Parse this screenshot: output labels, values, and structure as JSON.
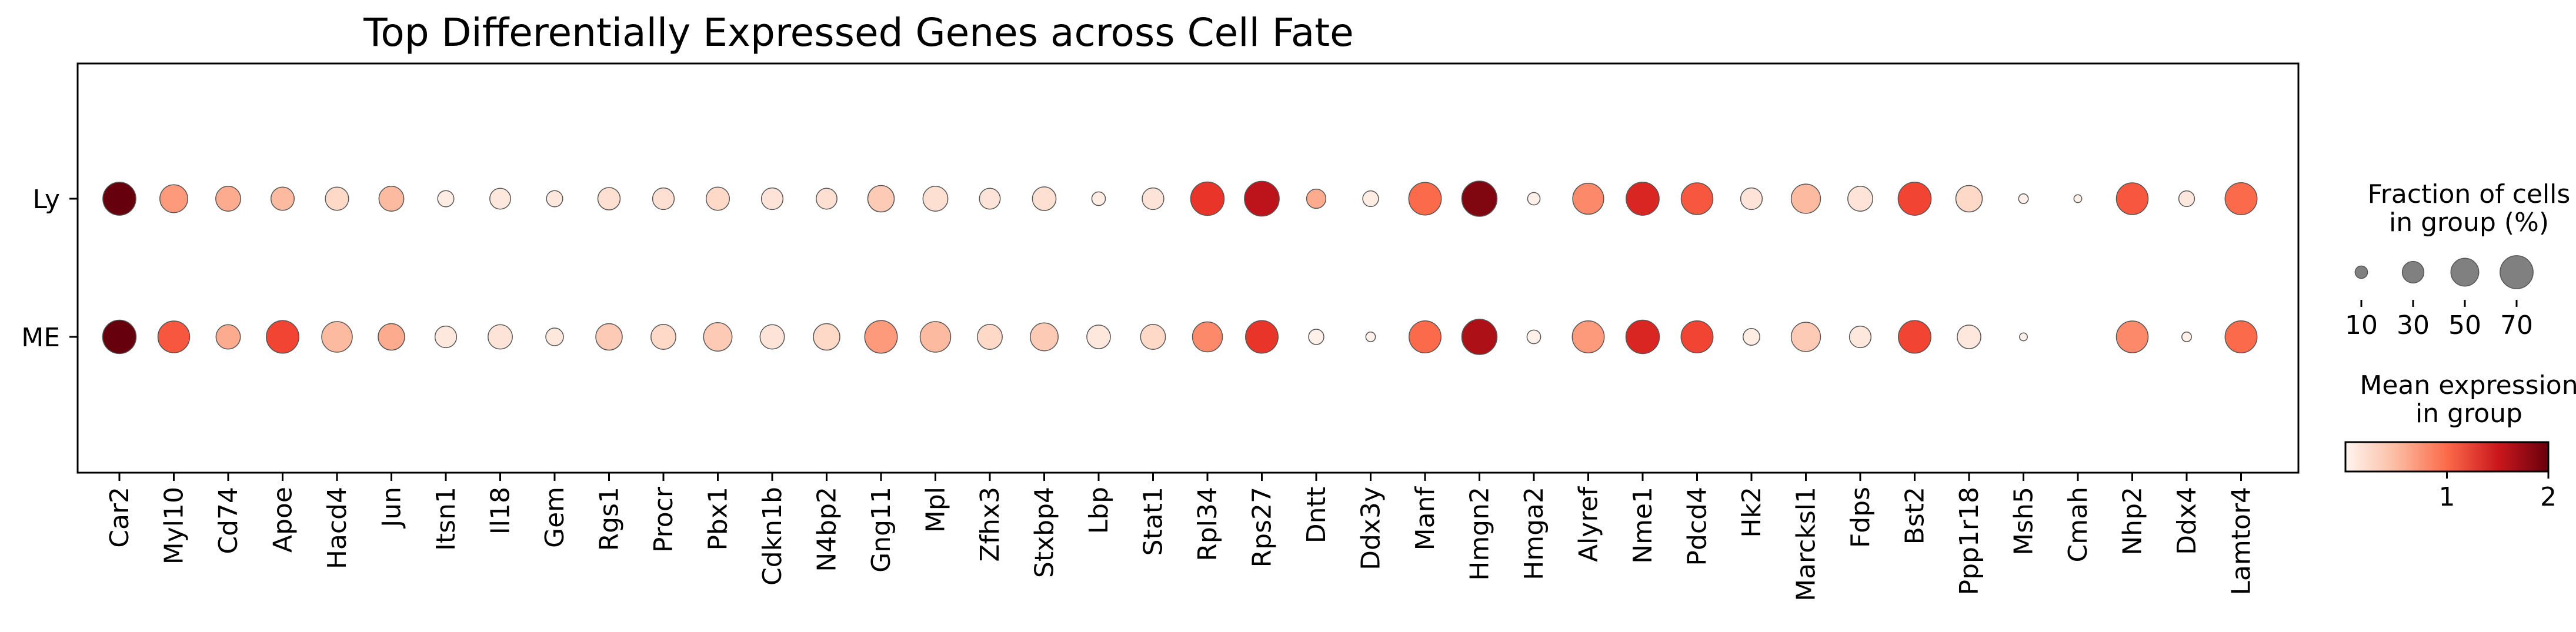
{
  "chart_data": {
    "type": "dotplot",
    "title": "Top Differentially Expressed Genes across Cell Fate",
    "rows": [
      "Ly",
      "ME"
    ],
    "genes": [
      "Car2",
      "Myl10",
      "Cd74",
      "Apoe",
      "Hacd4",
      "Jun",
      "Itsn1",
      "Il18",
      "Gem",
      "Rgs1",
      "Procr",
      "Pbx1",
      "Cdkn1b",
      "N4bp2",
      "Gng11",
      "Mpl",
      "Zfhx3",
      "Stxbp4",
      "Lbp",
      "Stat1",
      "Rpl34",
      "Rps27",
      "Dntt",
      "Ddx3y",
      "Manf",
      "Hmgn2",
      "Hmga2",
      "Alyref",
      "Nme1",
      "Pdcd4",
      "Hk2",
      "Marcksl1",
      "Fdps",
      "Bst2",
      "Ppp1r18",
      "Msh5",
      "Cmah",
      "Nhp2",
      "Ddx4",
      "Lamtor4"
    ],
    "series": [
      {
        "name": "Ly",
        "fraction": [
          70,
          50,
          40,
          35,
          35,
          40,
          17,
          28,
          17,
          32,
          30,
          35,
          30,
          28,
          45,
          40,
          28,
          36,
          12,
          30,
          72,
          78,
          24,
          16,
          68,
          80,
          10,
          62,
          70,
          65,
          30,
          55,
          40,
          70,
          45,
          6,
          4,
          65,
          16,
          66
        ],
        "mean_expression": [
          2.0,
          0.7,
          0.6,
          0.5,
          0.3,
          0.5,
          0.1,
          0.15,
          0.15,
          0.25,
          0.25,
          0.3,
          0.2,
          0.25,
          0.4,
          0.25,
          0.2,
          0.25,
          0.1,
          0.2,
          1.3,
          1.6,
          0.6,
          0.1,
          1.0,
          1.9,
          0.05,
          0.8,
          1.4,
          1.1,
          0.2,
          0.5,
          0.2,
          1.2,
          0.3,
          0.05,
          0.05,
          1.1,
          0.15,
          1.0
        ]
      },
      {
        "name": "ME",
        "fraction": [
          72,
          65,
          38,
          68,
          60,
          45,
          30,
          38,
          20,
          45,
          40,
          52,
          38,
          45,
          68,
          60,
          40,
          50,
          36,
          40,
          58,
          68,
          15,
          6,
          66,
          80,
          12,
          66,
          72,
          66,
          18,
          55,
          30,
          68,
          36,
          4,
          0,
          65,
          6,
          66
        ],
        "mean_expression": [
          2.0,
          1.1,
          0.6,
          1.2,
          0.5,
          0.6,
          0.15,
          0.2,
          0.15,
          0.4,
          0.3,
          0.4,
          0.2,
          0.3,
          0.7,
          0.5,
          0.3,
          0.4,
          0.15,
          0.3,
          0.8,
          1.3,
          0.05,
          0.05,
          1.0,
          1.7,
          0.05,
          0.7,
          1.4,
          1.2,
          0.1,
          0.4,
          0.15,
          1.2,
          0.15,
          0.05,
          0,
          0.8,
          0.05,
          1.0
        ]
      }
    ],
    "size_legend": {
      "title_line1": "Fraction of cells",
      "title_line2": "in group (%)",
      "values": [
        10,
        30,
        50,
        70
      ],
      "labels": [
        "10",
        "30",
        "50",
        "70"
      ]
    },
    "color_legend": {
      "title_line1": "Mean expression",
      "title_line2": "in group",
      "colormap": "Reds",
      "range": [
        0,
        2
      ],
      "ticks": [
        1,
        2
      ],
      "tick_labels": [
        "1",
        "2"
      ]
    }
  }
}
